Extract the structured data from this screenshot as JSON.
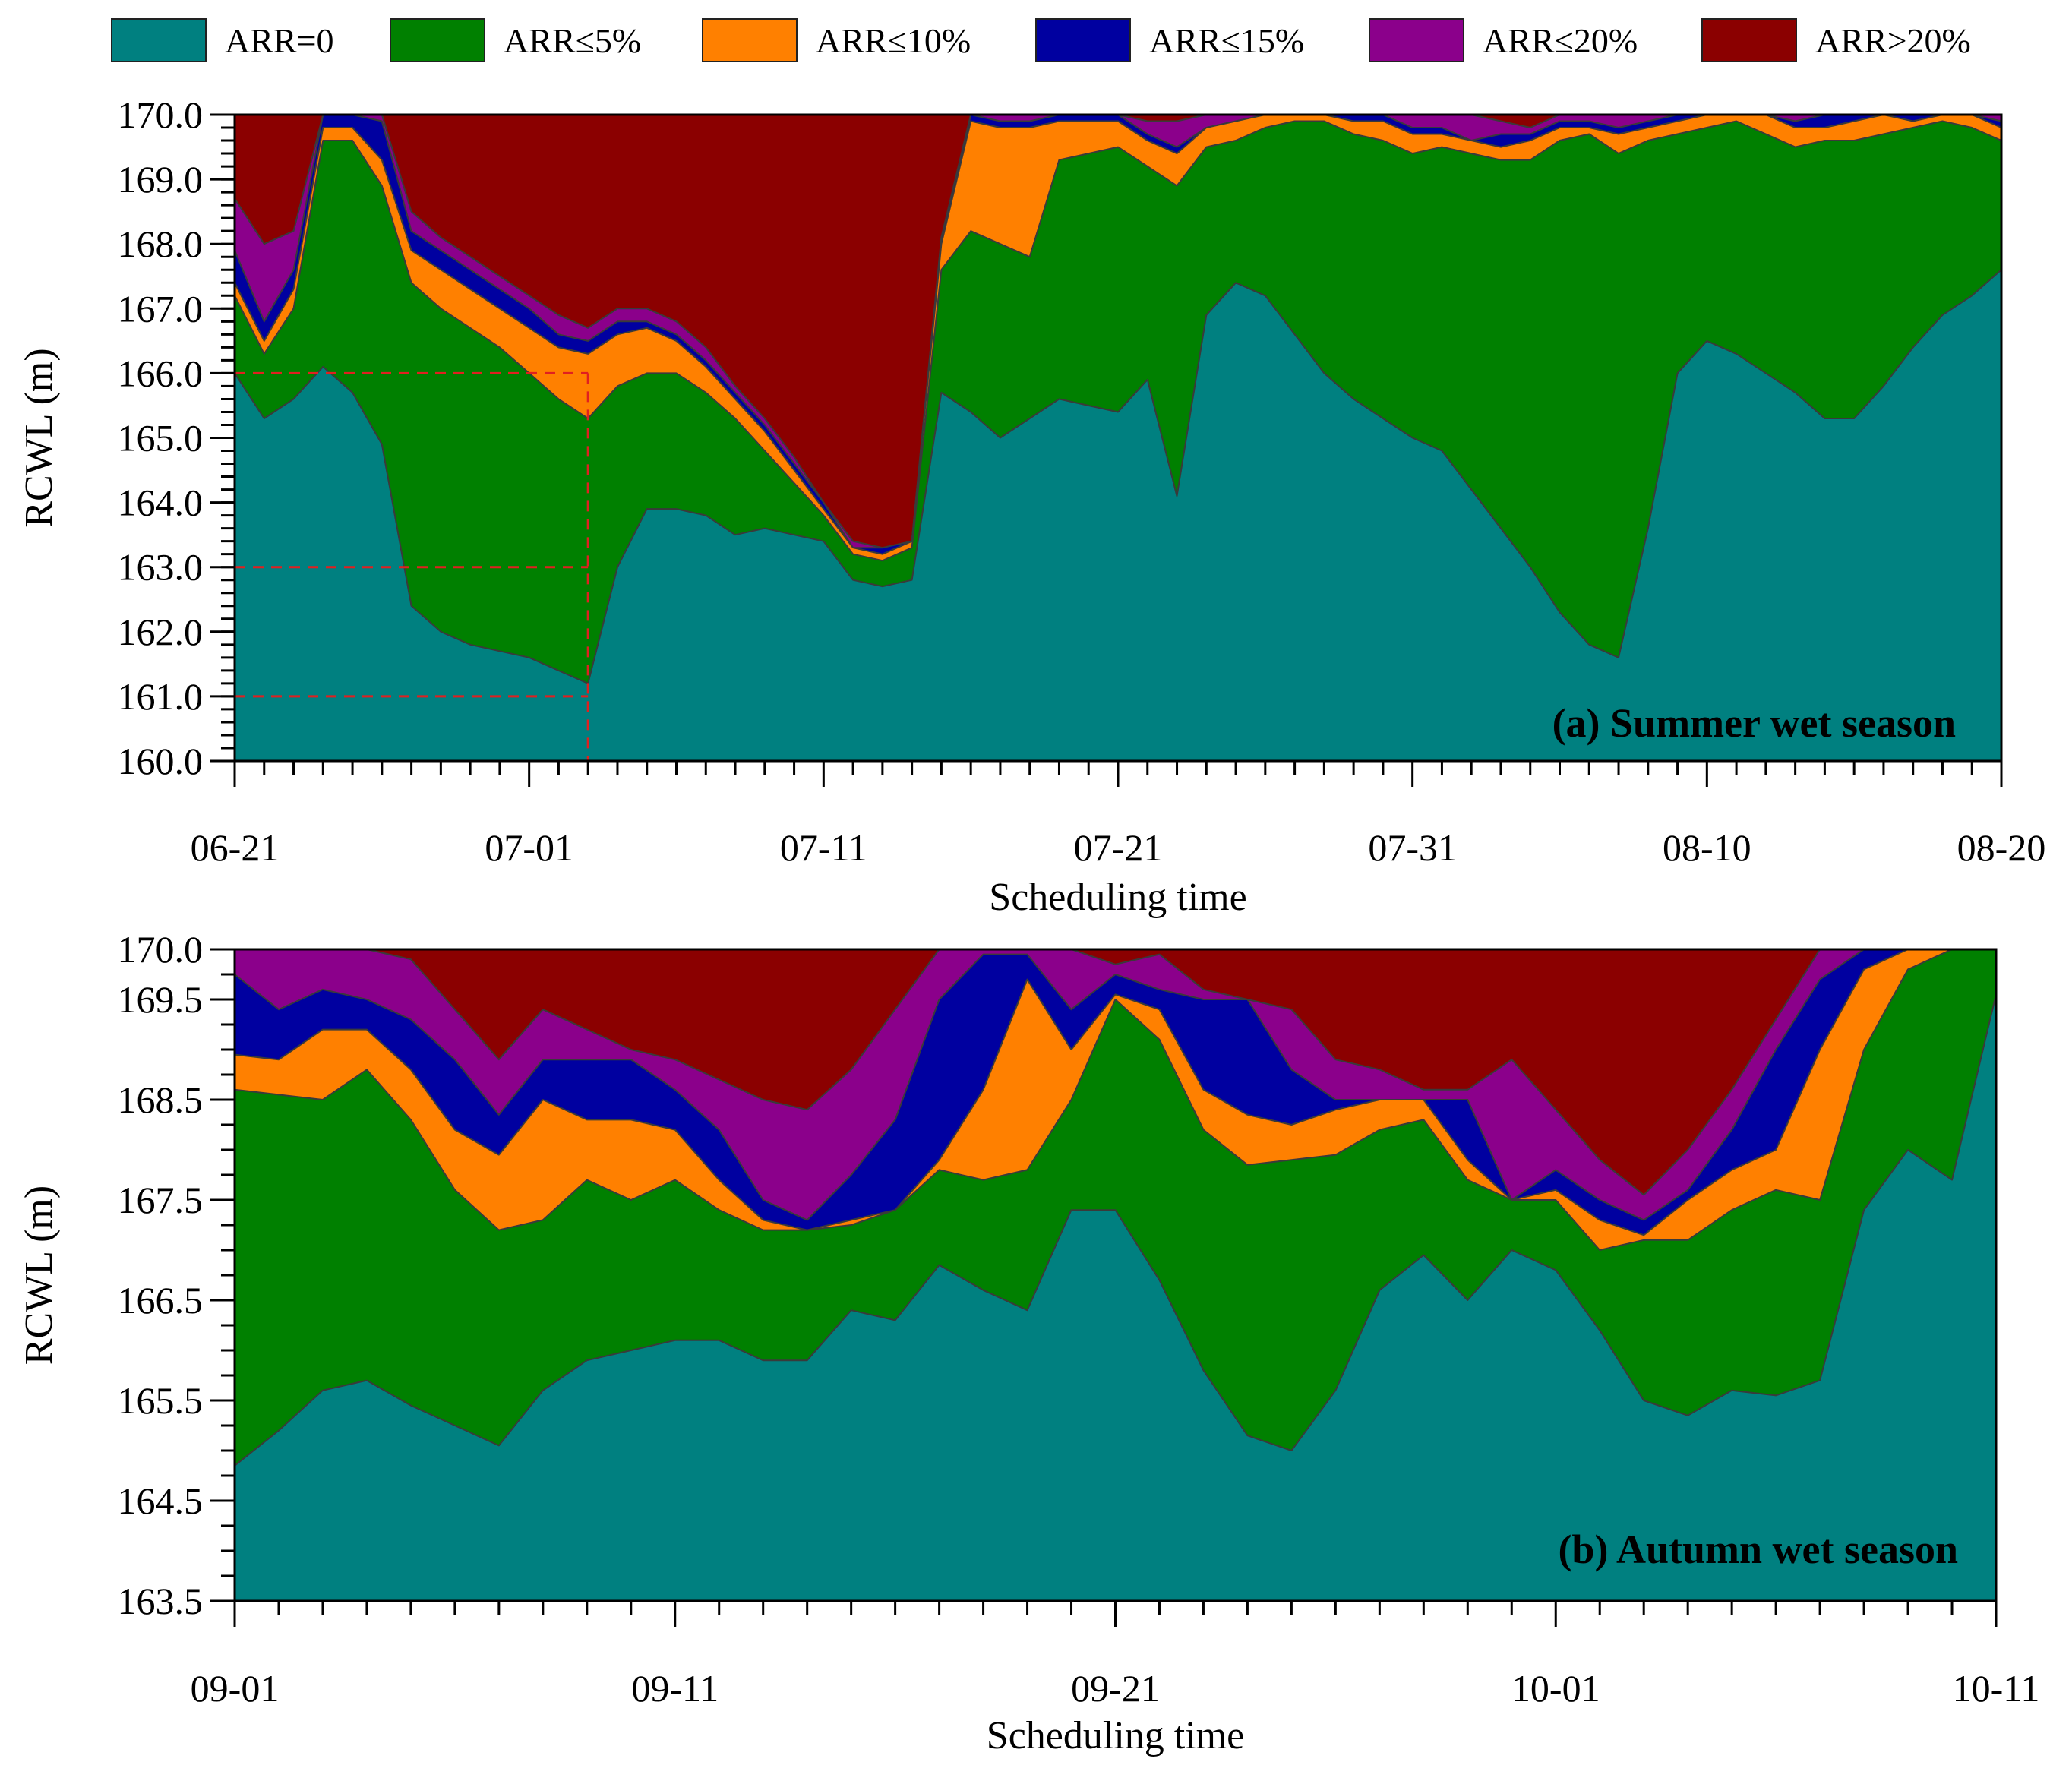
{
  "legend": [
    {
      "label": "ARR=0",
      "color": "#008080"
    },
    {
      "label": "ARR≤5%",
      "color": "#008000"
    },
    {
      "label": "ARR≤10%",
      "color": "#FF8000"
    },
    {
      "label": "ARR≤15%",
      "color": "#0000A0"
    },
    {
      "label": "ARR≤20%",
      "color": "#8B008B"
    },
    {
      "label": "ARR>20%",
      "color": "#8B0000"
    }
  ],
  "chart_data": [
    {
      "type": "area",
      "title": "(a) Summer wet season",
      "xlabel": "Scheduling time",
      "ylabel": "RCWL (m)",
      "xlim": [
        0,
        60
      ],
      "ylim": [
        160.0,
        170.0
      ],
      "x_tick_labels": [
        "06-21",
        "07-01",
        "07-11",
        "07-21",
        "07-31",
        "08-10",
        "08-20"
      ],
      "y_tick_labels": [
        "160.0",
        "161.0",
        "162.0",
        "163.0",
        "164.0",
        "165.0",
        "166.0",
        "167.0",
        "168.0",
        "169.0",
        "170.0"
      ],
      "annotation": {
        "x_day": 12,
        "y_levels": [
          166.0,
          163.0,
          161.0
        ],
        "style": "dashed red guide lines"
      },
      "x": [
        0,
        1,
        2,
        3,
        4,
        5,
        6,
        7,
        8,
        9,
        10,
        11,
        12,
        13,
        14,
        15,
        16,
        17,
        18,
        19,
        20,
        21,
        22,
        23,
        24,
        25,
        26,
        27,
        28,
        29,
        30,
        31,
        32,
        33,
        34,
        35,
        36,
        37,
        38,
        39,
        40,
        41,
        42,
        43,
        44,
        45,
        46,
        47,
        48,
        49,
        50,
        51,
        52,
        53,
        54,
        55,
        56,
        57,
        58,
        59,
        60
      ],
      "series": [
        {
          "name": "ARR=0",
          "values": [
            166.0,
            165.3,
            165.6,
            166.1,
            165.7,
            164.9,
            162.4,
            162.0,
            161.8,
            161.7,
            161.6,
            161.4,
            161.2,
            163.0,
            163.9,
            163.9,
            163.8,
            163.5,
            163.6,
            163.5,
            163.4,
            162.8,
            162.7,
            162.8,
            165.7,
            165.4,
            165.0,
            165.3,
            165.6,
            165.5,
            165.4,
            165.9,
            164.1,
            166.9,
            167.4,
            167.2,
            166.6,
            166.0,
            165.6,
            165.3,
            165.0,
            164.8,
            164.2,
            163.6,
            163.0,
            162.3,
            161.8,
            161.6,
            163.6,
            166.0,
            166.5,
            166.3,
            166.0,
            165.7,
            165.3,
            165.3,
            165.8,
            166.4,
            166.9,
            167.2,
            167.6
          ]
        },
        {
          "name": "ARR≤5%",
          "values": [
            167.2,
            166.3,
            167.0,
            169.6,
            169.6,
            168.9,
            167.4,
            167.0,
            166.7,
            166.4,
            166.0,
            165.6,
            165.3,
            165.8,
            166.0,
            166.0,
            165.7,
            165.3,
            164.8,
            164.3,
            163.8,
            163.2,
            163.1,
            163.3,
            167.6,
            168.2,
            168.0,
            167.8,
            169.3,
            169.4,
            169.5,
            169.2,
            168.9,
            169.5,
            169.6,
            169.8,
            169.9,
            169.9,
            169.7,
            169.6,
            169.4,
            169.5,
            169.4,
            169.3,
            169.3,
            169.6,
            169.7,
            169.4,
            169.6,
            169.7,
            169.8,
            169.9,
            169.7,
            169.5,
            169.6,
            169.6,
            169.7,
            169.8,
            169.9,
            169.8,
            169.6
          ]
        },
        {
          "name": "ARR≤10%",
          "values": [
            167.4,
            166.5,
            167.3,
            169.8,
            169.8,
            169.3,
            167.9,
            167.6,
            167.3,
            167.0,
            166.7,
            166.4,
            166.3,
            166.6,
            166.7,
            166.5,
            166.1,
            165.6,
            165.1,
            164.5,
            163.9,
            163.3,
            163.2,
            163.4,
            168.0,
            169.9,
            169.8,
            169.8,
            169.9,
            169.9,
            169.9,
            169.6,
            169.4,
            169.8,
            169.9,
            170.0,
            170.0,
            170.0,
            169.9,
            169.9,
            169.7,
            169.7,
            169.6,
            169.5,
            169.6,
            169.8,
            169.8,
            169.7,
            169.8,
            169.9,
            170.0,
            170.0,
            170.0,
            169.8,
            169.8,
            169.9,
            170.0,
            169.9,
            170.0,
            170.0,
            169.8
          ]
        },
        {
          "name": "ARR≤15%",
          "values": [
            167.9,
            166.8,
            167.6,
            170.0,
            170.0,
            169.9,
            168.2,
            167.9,
            167.6,
            167.3,
            167.0,
            166.6,
            166.5,
            166.8,
            166.8,
            166.6,
            166.2,
            165.7,
            165.2,
            164.6,
            164.0,
            163.3,
            163.3,
            163.4,
            168.1,
            170.0,
            169.9,
            169.9,
            170.0,
            170.0,
            170.0,
            169.7,
            169.5,
            169.8,
            169.9,
            170.0,
            170.0,
            170.0,
            170.0,
            170.0,
            169.8,
            169.8,
            169.6,
            169.7,
            169.7,
            169.9,
            169.9,
            169.8,
            169.9,
            170.0,
            170.0,
            170.0,
            170.0,
            169.9,
            170.0,
            170.0,
            170.0,
            170.0,
            170.0,
            170.0,
            169.9
          ]
        },
        {
          "name": "ARR≤20%",
          "values": [
            168.7,
            168.0,
            168.2,
            170.0,
            170.0,
            170.0,
            168.5,
            168.1,
            167.8,
            167.5,
            167.2,
            166.9,
            166.7,
            167.0,
            167.0,
            166.8,
            166.4,
            165.8,
            165.3,
            164.7,
            164.0,
            163.4,
            163.3,
            163.4,
            168.1,
            170.0,
            170.0,
            170.0,
            170.0,
            170.0,
            170.0,
            169.9,
            169.9,
            170.0,
            170.0,
            170.0,
            170.0,
            170.0,
            170.0,
            170.0,
            170.0,
            170.0,
            170.0,
            169.9,
            169.8,
            170.0,
            170.0,
            170.0,
            170.0,
            170.0,
            170.0,
            170.0,
            170.0,
            170.0,
            170.0,
            170.0,
            170.0,
            170.0,
            170.0,
            170.0,
            170.0
          ]
        },
        {
          "name": "ARR>20%",
          "values": [
            170.0,
            170.0,
            170.0,
            170.0,
            170.0,
            170.0,
            170.0,
            170.0,
            170.0,
            170.0,
            170.0,
            170.0,
            170.0,
            170.0,
            170.0,
            170.0,
            170.0,
            170.0,
            170.0,
            170.0,
            170.0,
            170.0,
            170.0,
            170.0,
            170.0,
            170.0,
            170.0,
            170.0,
            170.0,
            170.0,
            170.0,
            170.0,
            170.0,
            170.0,
            170.0,
            170.0,
            170.0,
            170.0,
            170.0,
            170.0,
            170.0,
            170.0,
            170.0,
            170.0,
            170.0,
            170.0,
            170.0,
            170.0,
            170.0,
            170.0,
            170.0,
            170.0,
            170.0,
            170.0,
            170.0,
            170.0,
            170.0,
            170.0,
            170.0,
            170.0,
            170.0
          ]
        }
      ]
    },
    {
      "type": "area",
      "title": "(b) Autumn wet season",
      "xlabel": "Scheduling time",
      "ylabel": "RCWL (m)",
      "xlim": [
        0,
        40
      ],
      "ylim": [
        163.5,
        170.0
      ],
      "x_tick_labels": [
        "09-01",
        "09-11",
        "09-21",
        "10-01",
        "10-11"
      ],
      "y_tick_labels": [
        "163.5",
        "164.5",
        "165.5",
        "166.5",
        "167.5",
        "168.5",
        "169.5",
        "170.0"
      ],
      "x": [
        0,
        1,
        2,
        3,
        4,
        5,
        6,
        7,
        8,
        9,
        10,
        11,
        12,
        13,
        14,
        15,
        16,
        17,
        18,
        19,
        20,
        21,
        22,
        23,
        24,
        25,
        26,
        27,
        28,
        29,
        30,
        31,
        32,
        33,
        34,
        35,
        36,
        37,
        38,
        39,
        40
      ],
      "series": [
        {
          "name": "ARR=0",
          "values": [
            164.85,
            165.2,
            165.6,
            165.7,
            165.45,
            165.25,
            165.05,
            165.6,
            165.9,
            166.0,
            166.1,
            166.1,
            165.9,
            165.9,
            166.4,
            166.3,
            166.85,
            166.6,
            166.4,
            167.4,
            167.4,
            166.7,
            165.8,
            165.15,
            165.0,
            165.6,
            166.6,
            166.95,
            166.5,
            167.0,
            166.8,
            166.2,
            165.5,
            165.35,
            165.6,
            165.55,
            165.7,
            167.4,
            168.0,
            167.7,
            169.55
          ]
        },
        {
          "name": "ARR≤5%",
          "values": [
            168.6,
            168.55,
            168.5,
            168.8,
            168.3,
            167.6,
            167.2,
            167.3,
            167.7,
            167.5,
            167.7,
            167.4,
            167.2,
            167.2,
            167.25,
            167.4,
            167.8,
            167.7,
            167.8,
            168.5,
            169.5,
            169.1,
            168.2,
            167.85,
            167.9,
            167.95,
            168.2,
            168.3,
            167.7,
            167.5,
            167.5,
            167.0,
            167.1,
            167.1,
            167.4,
            167.6,
            167.5,
            169.0,
            169.8,
            170.0,
            170.0
          ]
        },
        {
          "name": "ARR≤10%",
          "values": [
            168.95,
            168.9,
            169.2,
            169.2,
            168.8,
            168.2,
            167.95,
            168.5,
            168.3,
            168.3,
            168.2,
            167.7,
            167.3,
            167.2,
            167.3,
            167.4,
            167.9,
            168.6,
            169.7,
            169.0,
            169.55,
            169.4,
            168.6,
            168.35,
            168.25,
            168.4,
            168.5,
            168.5,
            167.9,
            167.5,
            167.6,
            167.3,
            167.15,
            167.5,
            167.8,
            168.0,
            169.0,
            169.8,
            170.0,
            170.0,
            170.0
          ]
        },
        {
          "name": "ARR≤15%",
          "values": [
            169.75,
            169.4,
            169.6,
            169.5,
            169.3,
            168.9,
            168.35,
            168.9,
            168.9,
            168.9,
            168.6,
            168.2,
            167.5,
            167.3,
            167.75,
            168.3,
            169.5,
            169.95,
            169.95,
            169.4,
            169.75,
            169.6,
            169.5,
            169.5,
            168.8,
            168.5,
            168.5,
            168.5,
            168.5,
            167.5,
            167.8,
            167.5,
            167.3,
            167.6,
            168.2,
            169.0,
            169.7,
            170.0,
            170.0,
            170.0,
            170.0
          ]
        },
        {
          "name": "ARR≤20%",
          "values": [
            170.0,
            170.0,
            170.0,
            170.0,
            169.9,
            169.4,
            168.9,
            169.4,
            169.2,
            169.0,
            168.9,
            168.7,
            168.5,
            168.4,
            168.8,
            169.4,
            170.0,
            170.0,
            170.0,
            170.0,
            169.85,
            169.95,
            169.6,
            169.5,
            169.4,
            168.9,
            168.8,
            168.6,
            168.6,
            168.9,
            168.4,
            167.9,
            167.55,
            168.0,
            168.6,
            169.3,
            170.0,
            170.0,
            170.0,
            170.0,
            170.0
          ]
        },
        {
          "name": "ARR>20%",
          "values": [
            170.0,
            170.0,
            170.0,
            170.0,
            170.0,
            170.0,
            170.0,
            170.0,
            170.0,
            170.0,
            170.0,
            170.0,
            170.0,
            170.0,
            170.0,
            170.0,
            170.0,
            170.0,
            170.0,
            170.0,
            170.0,
            170.0,
            170.0,
            170.0,
            170.0,
            170.0,
            170.0,
            170.0,
            170.0,
            170.0,
            170.0,
            170.0,
            170.0,
            170.0,
            170.0,
            170.0,
            170.0,
            170.0,
            170.0,
            170.0,
            170.0
          ]
        }
      ]
    }
  ]
}
